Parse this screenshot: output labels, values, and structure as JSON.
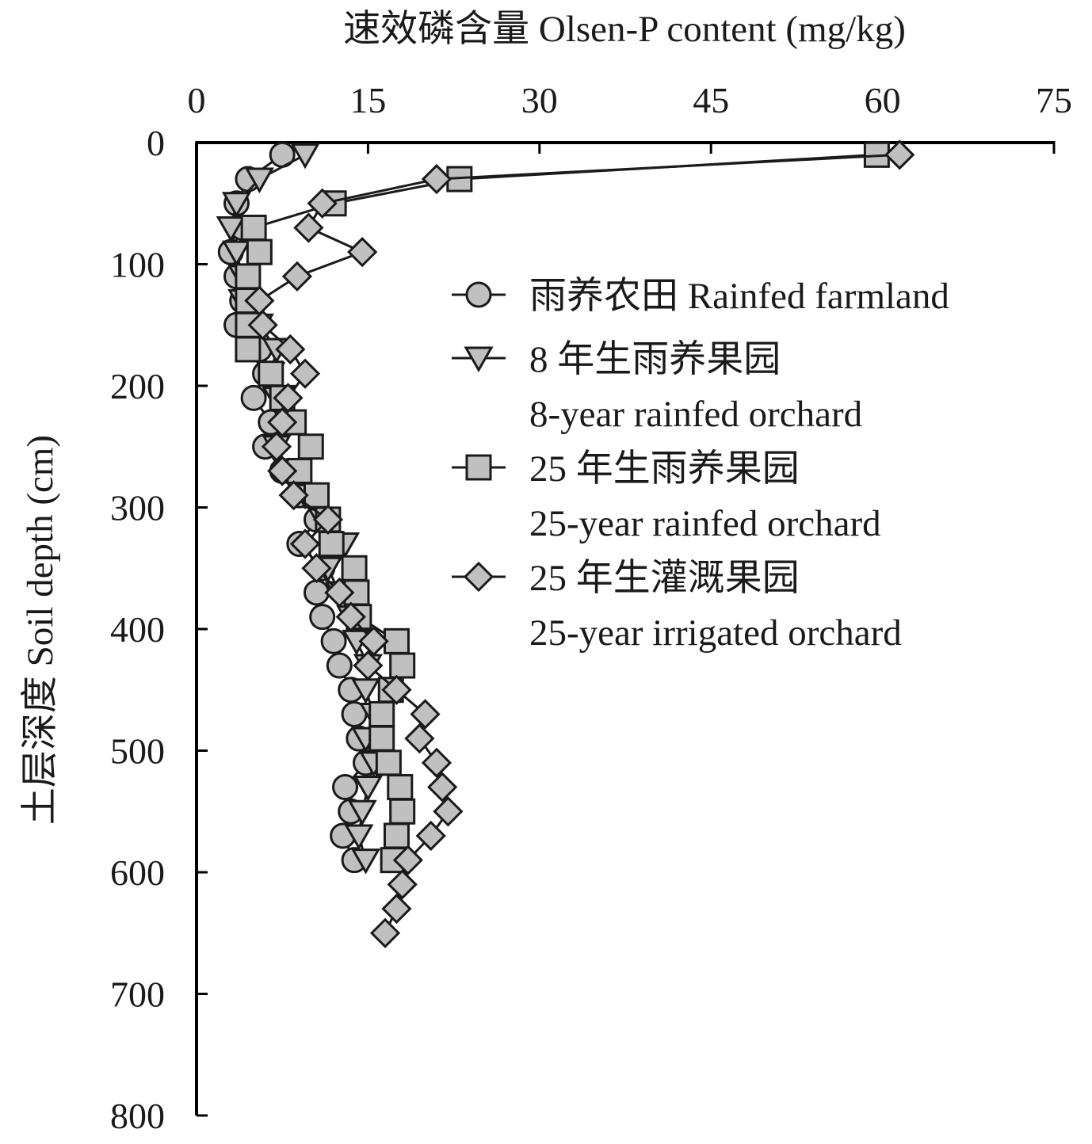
{
  "chart_data": {
    "type": "scatter",
    "title": "",
    "xlabel": "速效磷含量 Olsen-P content (mg/kg)",
    "ylabel": "土层深度 Soil depth (cm)",
    "xlim": [
      0,
      75
    ],
    "ylim": [
      0,
      800
    ],
    "x_axis_position": "top",
    "y_axis_inverted": true,
    "xticks": [
      0,
      15,
      30,
      45,
      60,
      75
    ],
    "yticks": [
      0,
      100,
      200,
      300,
      400,
      500,
      600,
      700,
      800
    ],
    "grid": false,
    "legend_position": "right",
    "series": [
      {
        "name": "雨养农田 Rainfed farmland",
        "name_line2": "",
        "marker": "circle",
        "color": "#c0c0c0",
        "points": [
          [
            7.5,
            10
          ],
          [
            4.5,
            30
          ],
          [
            3.5,
            50
          ],
          [
            4.0,
            70
          ],
          [
            3.0,
            90
          ],
          [
            3.5,
            110
          ],
          [
            4.0,
            130
          ],
          [
            3.5,
            150
          ],
          [
            5.5,
            170
          ],
          [
            6.0,
            190
          ],
          [
            5.0,
            210
          ],
          [
            6.5,
            230
          ],
          [
            6.0,
            250
          ],
          [
            7.5,
            270
          ],
          [
            9.0,
            290
          ],
          [
            10.5,
            310
          ],
          [
            9.0,
            330
          ],
          [
            11.0,
            350
          ],
          [
            10.5,
            370
          ],
          [
            11.0,
            390
          ],
          [
            12.0,
            410
          ],
          [
            12.5,
            430
          ],
          [
            13.5,
            450
          ],
          [
            13.8,
            470
          ],
          [
            14.2,
            490
          ],
          [
            14.8,
            510
          ],
          [
            13.0,
            530
          ],
          [
            13.5,
            550
          ],
          [
            12.8,
            570
          ],
          [
            13.8,
            590
          ]
        ]
      },
      {
        "name": "8 年生雨养果园",
        "name_line2": "8-year rainfed orchard",
        "marker": "triangle-down",
        "color": "#c0c0c0",
        "points": [
          [
            9.5,
            10
          ],
          [
            5.5,
            30
          ],
          [
            3.5,
            50
          ],
          [
            3.0,
            70
          ],
          [
            3.5,
            90
          ],
          [
            4.0,
            110
          ],
          [
            4.0,
            130
          ],
          [
            5.5,
            150
          ],
          [
            7.0,
            170
          ],
          [
            6.5,
            190
          ],
          [
            7.0,
            210
          ],
          [
            8.0,
            230
          ],
          [
            7.0,
            250
          ],
          [
            8.0,
            270
          ],
          [
            9.5,
            290
          ],
          [
            11.0,
            310
          ],
          [
            13.0,
            330
          ],
          [
            11.5,
            350
          ],
          [
            12.5,
            370
          ],
          [
            13.5,
            390
          ],
          [
            14.0,
            410
          ],
          [
            15.0,
            430
          ],
          [
            14.8,
            450
          ],
          [
            15.5,
            470
          ],
          [
            14.8,
            490
          ],
          [
            15.5,
            510
          ],
          [
            15.0,
            530
          ],
          [
            14.5,
            550
          ],
          [
            14.2,
            570
          ],
          [
            14.8,
            590
          ]
        ]
      },
      {
        "name": "25 年生雨养果园",
        "name_line2": "25-year rainfed orchard",
        "marker": "square",
        "color": "#c0c0c0",
        "points": [
          [
            59.5,
            10
          ],
          [
            23.0,
            30
          ],
          [
            12.0,
            50
          ],
          [
            5.0,
            70
          ],
          [
            5.5,
            90
          ],
          [
            4.5,
            110
          ],
          [
            4.5,
            130
          ],
          [
            4.5,
            150
          ],
          [
            4.5,
            170
          ],
          [
            6.5,
            190
          ],
          [
            7.5,
            210
          ],
          [
            8.5,
            230
          ],
          [
            10.0,
            250
          ],
          [
            9.0,
            270
          ],
          [
            10.5,
            290
          ],
          [
            11.5,
            310
          ],
          [
            11.8,
            330
          ],
          [
            13.8,
            350
          ],
          [
            14.0,
            370
          ],
          [
            14.2,
            390
          ],
          [
            17.5,
            410
          ],
          [
            18.0,
            430
          ],
          [
            17.0,
            450
          ],
          [
            16.2,
            470
          ],
          [
            16.2,
            490
          ],
          [
            16.8,
            510
          ],
          [
            17.8,
            530
          ],
          [
            18.0,
            550
          ],
          [
            17.5,
            570
          ],
          [
            17.2,
            590
          ]
        ]
      },
      {
        "name": "25 年生灌溉果园",
        "name_line2": "25-year irrigated orchard",
        "marker": "diamond",
        "color": "#c0c0c0",
        "points": [
          [
            61.5,
            10
          ],
          [
            21.0,
            30
          ],
          [
            11.0,
            50
          ],
          [
            9.8,
            70
          ],
          [
            14.5,
            90
          ],
          [
            8.8,
            110
          ],
          [
            5.5,
            130
          ],
          [
            5.8,
            150
          ],
          [
            8.2,
            170
          ],
          [
            9.5,
            190
          ],
          [
            8.0,
            210
          ],
          [
            7.5,
            230
          ],
          [
            7.0,
            250
          ],
          [
            7.5,
            270
          ],
          [
            8.5,
            290
          ],
          [
            11.5,
            310
          ],
          [
            9.5,
            330
          ],
          [
            10.5,
            350
          ],
          [
            12.5,
            370
          ],
          [
            13.5,
            390
          ],
          [
            15.5,
            410
          ],
          [
            15.0,
            430
          ],
          [
            17.5,
            450
          ],
          [
            20.0,
            470
          ],
          [
            19.5,
            490
          ],
          [
            21.0,
            510
          ],
          [
            21.5,
            530
          ],
          [
            22.0,
            550
          ],
          [
            20.5,
            570
          ],
          [
            18.5,
            590
          ],
          [
            18.0,
            610
          ],
          [
            17.5,
            630
          ],
          [
            16.5,
            650
          ]
        ]
      }
    ]
  }
}
